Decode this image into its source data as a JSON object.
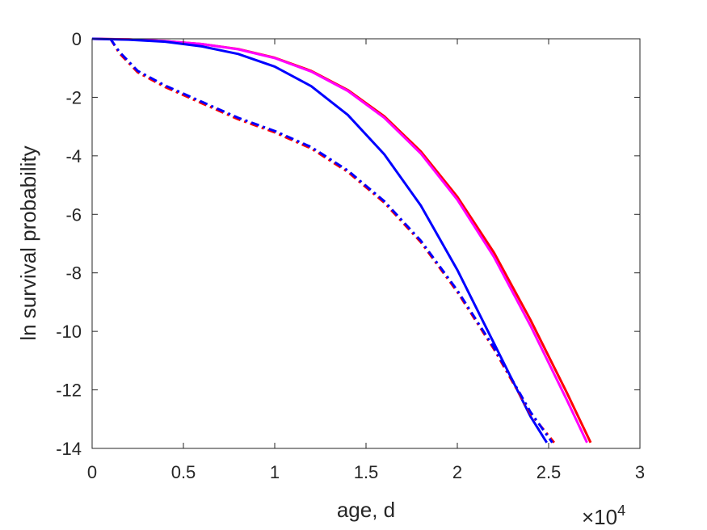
{
  "chart_data": {
    "type": "line",
    "title": "",
    "xlabel": "age, d",
    "ylabel": "ln survival probability",
    "x_multiplier": {
      "prefix": "×10",
      "exponent": "4"
    },
    "xlim": [
      0,
      30000
    ],
    "ylim": [
      -14,
      0
    ],
    "x_ticks": [
      0,
      5000,
      10000,
      15000,
      20000,
      25000,
      30000
    ],
    "x_tick_labels": [
      "0",
      "0.5",
      "1",
      "1.5",
      "2",
      "2.5",
      "3"
    ],
    "y_ticks": [
      0,
      -2,
      -4,
      -6,
      -8,
      -10,
      -12,
      -14
    ],
    "y_tick_labels": [
      "0",
      "-2",
      "-4",
      "-6",
      "-8",
      "-10",
      "-12",
      "-14"
    ],
    "grid": false,
    "legend": "none",
    "series": [
      {
        "color": "#ff0000",
        "dash": "solid",
        "points": [
          [
            0,
            0
          ],
          [
            2000,
            -0.02
          ],
          [
            4000,
            -0.08
          ],
          [
            6000,
            -0.18
          ],
          [
            8000,
            -0.35
          ],
          [
            10000,
            -0.65
          ],
          [
            12000,
            -1.1
          ],
          [
            14000,
            -1.75
          ],
          [
            16000,
            -2.65
          ],
          [
            18000,
            -3.85
          ],
          [
            20000,
            -5.4
          ],
          [
            22000,
            -7.3
          ],
          [
            24000,
            -9.6
          ],
          [
            26000,
            -12.1
          ],
          [
            27300,
            -13.8
          ]
        ]
      },
      {
        "color": "#ff00ff",
        "dash": "solid",
        "points": [
          [
            0,
            0
          ],
          [
            2000,
            -0.02
          ],
          [
            4000,
            -0.08
          ],
          [
            6000,
            -0.18
          ],
          [
            8000,
            -0.36
          ],
          [
            10000,
            -0.66
          ],
          [
            12000,
            -1.12
          ],
          [
            14000,
            -1.78
          ],
          [
            16000,
            -2.7
          ],
          [
            18000,
            -3.92
          ],
          [
            20000,
            -5.5
          ],
          [
            22000,
            -7.45
          ],
          [
            24000,
            -9.8
          ],
          [
            26000,
            -12.35
          ],
          [
            27100,
            -13.8
          ]
        ]
      },
      {
        "color": "#0000ff",
        "dash": "solid",
        "points": [
          [
            0,
            0
          ],
          [
            2000,
            -0.03
          ],
          [
            4000,
            -0.1
          ],
          [
            6000,
            -0.26
          ],
          [
            8000,
            -0.52
          ],
          [
            10000,
            -0.95
          ],
          [
            12000,
            -1.62
          ],
          [
            14000,
            -2.6
          ],
          [
            16000,
            -3.95
          ],
          [
            18000,
            -5.7
          ],
          [
            20000,
            -7.9
          ],
          [
            22000,
            -10.4
          ],
          [
            24000,
            -12.9
          ],
          [
            24900,
            -13.8
          ]
        ]
      },
      {
        "color": "#ff0000",
        "dash": "dashdot",
        "points": [
          [
            1000,
            0
          ],
          [
            1500,
            -0.5
          ],
          [
            2500,
            -1.15
          ],
          [
            4000,
            -1.65
          ],
          [
            6000,
            -2.2
          ],
          [
            8000,
            -2.75
          ],
          [
            10000,
            -3.2
          ],
          [
            12000,
            -3.75
          ],
          [
            14000,
            -4.55
          ],
          [
            16000,
            -5.6
          ],
          [
            18000,
            -6.95
          ],
          [
            20000,
            -8.65
          ],
          [
            22000,
            -10.6
          ],
          [
            24000,
            -12.8
          ],
          [
            25300,
            -13.8
          ]
        ]
      },
      {
        "color": "#0000ff",
        "dash": "dashdot",
        "points": [
          [
            1000,
            0
          ],
          [
            1500,
            -0.45
          ],
          [
            2500,
            -1.1
          ],
          [
            4000,
            -1.6
          ],
          [
            6000,
            -2.15
          ],
          [
            8000,
            -2.7
          ],
          [
            10000,
            -3.15
          ],
          [
            12000,
            -3.7
          ],
          [
            14000,
            -4.5
          ],
          [
            16000,
            -5.55
          ],
          [
            18000,
            -6.9
          ],
          [
            20000,
            -8.6
          ],
          [
            22000,
            -10.55
          ],
          [
            24000,
            -12.75
          ],
          [
            25200,
            -13.8
          ]
        ]
      }
    ]
  }
}
